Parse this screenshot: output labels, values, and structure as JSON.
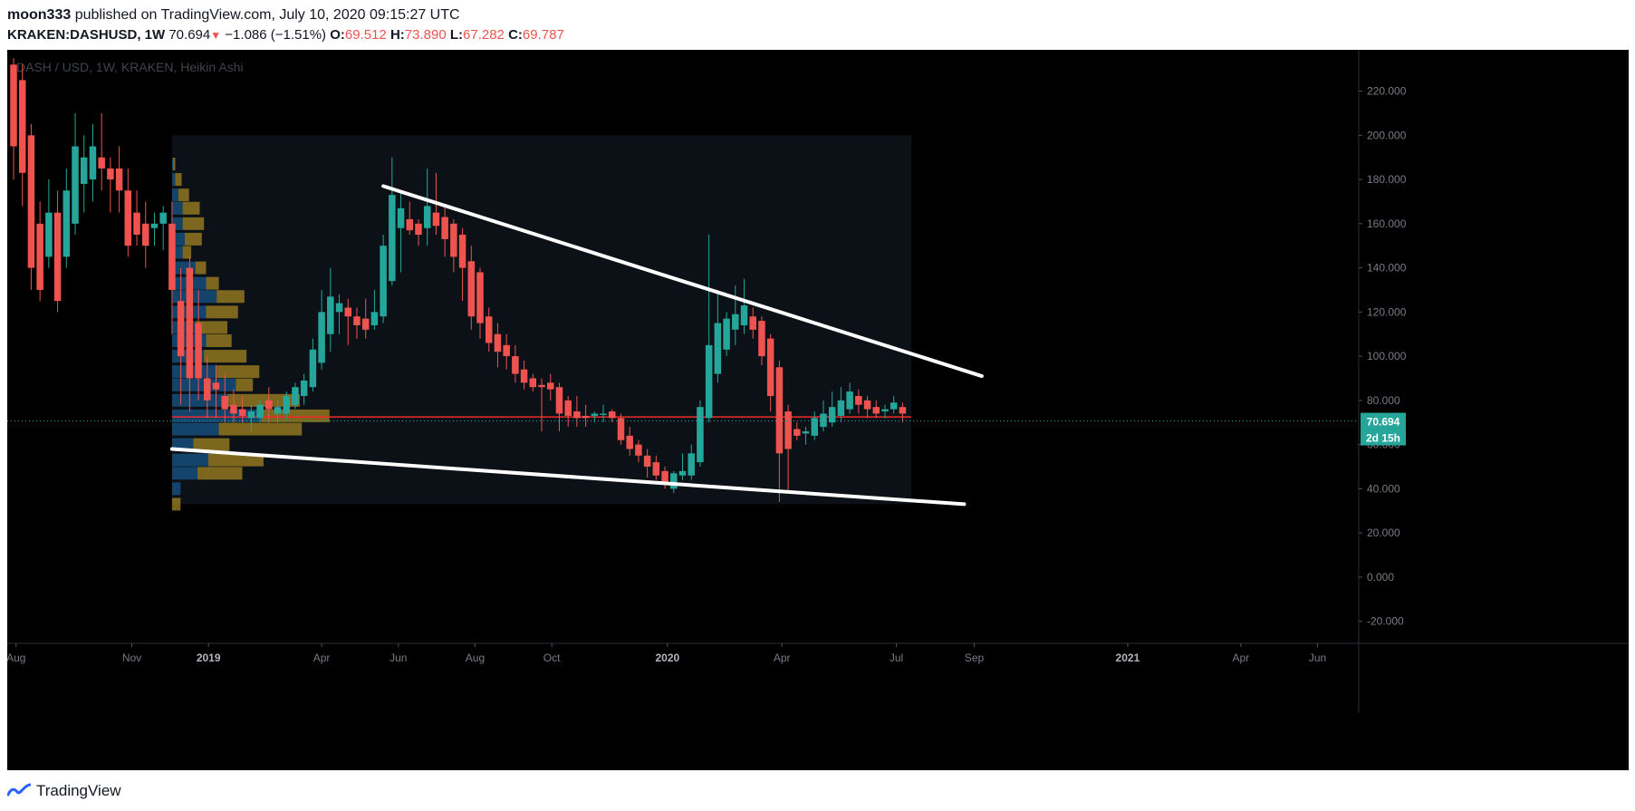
{
  "header": {
    "author": "moon333",
    "published_text": "published on TradingView.com, July 10, 2020 09:15:27 UTC",
    "symbol": "KRAKEN:DASHUSD, 1W",
    "last": "70.694",
    "change": "−1.086 (−1.51%)",
    "o_label": "O:",
    "o_value": "69.512",
    "h_label": "H:",
    "h_value": "73.890",
    "l_label": "L:",
    "l_value": "67.282",
    "c_label": "C:",
    "c_value": "69.787"
  },
  "colors": {
    "up": "#26a69a",
    "down": "#ef5350",
    "background": "#000000",
    "trendline": "#ffffff",
    "profile_up": "#1e6fb5",
    "profile_down": "#c9a227",
    "poc_line": "#ef2b2b",
    "price_label_bg": "#26a69a"
  },
  "footer": {
    "brand": "TradingView"
  },
  "chart_data": {
    "type": "candlestick",
    "watermark": "DASH / USD, 1W, KRAKEN, Heikin Ashi",
    "y_axis": {
      "range": [
        -30,
        235
      ],
      "ticks": [
        "220.000",
        "200.000",
        "180.000",
        "160.000",
        "140.000",
        "120.000",
        "100.000",
        "80.000",
        "60.000",
        "40.000",
        "20.000",
        "0.000",
        "-20.000"
      ],
      "tick_values": [
        220,
        200,
        180,
        160,
        140,
        120,
        100,
        80,
        60,
        40,
        20,
        0,
        -20
      ]
    },
    "x_axis": {
      "range": [
        "2018-07-30",
        "2021-06-28"
      ],
      "labels": [
        {
          "text": "Aug",
          "date": "2018-08-01",
          "bold": false
        },
        {
          "text": "Nov",
          "date": "2018-11-01",
          "bold": false
        },
        {
          "text": "2019",
          "date": "2019-01-01",
          "bold": true
        },
        {
          "text": "Apr",
          "date": "2019-04-01",
          "bold": false
        },
        {
          "text": "Jun",
          "date": "2019-06-01",
          "bold": false
        },
        {
          "text": "Aug",
          "date": "2019-08-01",
          "bold": false
        },
        {
          "text": "Oct",
          "date": "2019-10-01",
          "bold": false
        },
        {
          "text": "2020",
          "date": "2020-01-01",
          "bold": true
        },
        {
          "text": "Apr",
          "date": "2020-04-01",
          "bold": false
        },
        {
          "text": "Jul",
          "date": "2020-07-01",
          "bold": false
        },
        {
          "text": "Sep",
          "date": "2020-09-01",
          "bold": false
        },
        {
          "text": "2021",
          "date": "2021-01-01",
          "bold": true
        },
        {
          "text": "Apr",
          "date": "2021-04-01",
          "bold": false
        },
        {
          "text": "Jun",
          "date": "2021-06-01",
          "bold": false
        }
      ]
    },
    "current_price": {
      "value": 70.694,
      "label": "70.694",
      "countdown": "2d 15h"
    },
    "poc_price": 72.5,
    "candles": [
      {
        "d": "2018-07-30",
        "o": 232,
        "h": 235,
        "l": 180,
        "c": 195
      },
      {
        "d": "2018-08-06",
        "o": 225,
        "h": 232,
        "l": 168,
        "c": 183
      },
      {
        "d": "2018-08-13",
        "o": 200,
        "h": 205,
        "l": 130,
        "c": 140
      },
      {
        "d": "2018-08-20",
        "o": 160,
        "h": 170,
        "l": 125,
        "c": 130
      },
      {
        "d": "2018-08-27",
        "o": 145,
        "h": 180,
        "l": 140,
        "c": 165
      },
      {
        "d": "2018-09-03",
        "o": 165,
        "h": 175,
        "l": 120,
        "c": 125
      },
      {
        "d": "2018-09-10",
        "o": 145,
        "h": 185,
        "l": 140,
        "c": 175
      },
      {
        "d": "2018-09-17",
        "o": 160,
        "h": 210,
        "l": 155,
        "c": 195
      },
      {
        "d": "2018-09-24",
        "o": 178,
        "h": 200,
        "l": 165,
        "c": 190
      },
      {
        "d": "2018-10-01",
        "o": 180,
        "h": 205,
        "l": 170,
        "c": 195
      },
      {
        "d": "2018-10-08",
        "o": 190,
        "h": 210,
        "l": 175,
        "c": 185
      },
      {
        "d": "2018-10-15",
        "o": 185,
        "h": 190,
        "l": 165,
        "c": 180
      },
      {
        "d": "2018-10-22",
        "o": 185,
        "h": 195,
        "l": 165,
        "c": 175
      },
      {
        "d": "2018-10-29",
        "o": 175,
        "h": 185,
        "l": 145,
        "c": 150
      },
      {
        "d": "2018-11-05",
        "o": 165,
        "h": 175,
        "l": 150,
        "c": 155
      },
      {
        "d": "2018-11-12",
        "o": 160,
        "h": 170,
        "l": 140,
        "c": 150
      },
      {
        "d": "2018-11-19",
        "o": 158,
        "h": 165,
        "l": 150,
        "c": 160
      },
      {
        "d": "2018-11-26",
        "o": 160,
        "h": 168,
        "l": 148,
        "c": 165
      },
      {
        "d": "2018-12-03",
        "o": 160,
        "h": 170,
        "l": 110,
        "c": 130
      },
      {
        "d": "2018-12-10",
        "o": 125,
        "h": 140,
        "l": 78,
        "c": 100
      },
      {
        "d": "2018-12-17",
        "o": 140,
        "h": 145,
        "l": 75,
        "c": 90
      },
      {
        "d": "2018-12-24",
        "o": 115,
        "h": 130,
        "l": 80,
        "c": 90
      },
      {
        "d": "2018-12-31",
        "o": 90,
        "h": 100,
        "l": 72,
        "c": 80
      },
      {
        "d": "2019-01-07",
        "o": 88,
        "h": 96,
        "l": 72,
        "c": 85
      },
      {
        "d": "2019-01-14",
        "o": 82,
        "h": 92,
        "l": 70,
        "c": 76
      },
      {
        "d": "2019-01-21",
        "o": 78,
        "h": 85,
        "l": 70,
        "c": 74
      },
      {
        "d": "2019-01-28",
        "o": 76,
        "h": 82,
        "l": 70,
        "c": 73
      },
      {
        "d": "2019-02-04",
        "o": 72,
        "h": 78,
        "l": 66,
        "c": 75
      },
      {
        "d": "2019-02-11",
        "o": 72,
        "h": 80,
        "l": 70,
        "c": 78
      },
      {
        "d": "2019-02-18",
        "o": 80,
        "h": 86,
        "l": 70,
        "c": 76
      },
      {
        "d": "2019-02-25",
        "o": 74,
        "h": 80,
        "l": 70,
        "c": 77
      },
      {
        "d": "2019-03-04",
        "o": 74,
        "h": 84,
        "l": 72,
        "c": 82
      },
      {
        "d": "2019-03-11",
        "o": 78,
        "h": 88,
        "l": 76,
        "c": 86
      },
      {
        "d": "2019-03-18",
        "o": 82,
        "h": 92,
        "l": 78,
        "c": 89
      },
      {
        "d": "2019-03-25",
        "o": 86,
        "h": 108,
        "l": 84,
        "c": 103
      },
      {
        "d": "2019-04-01",
        "o": 97,
        "h": 130,
        "l": 94,
        "c": 120
      },
      {
        "d": "2019-04-08",
        "o": 110,
        "h": 140,
        "l": 102,
        "c": 127
      },
      {
        "d": "2019-04-15",
        "o": 120,
        "h": 128,
        "l": 110,
        "c": 124
      },
      {
        "d": "2019-04-22",
        "o": 122,
        "h": 126,
        "l": 105,
        "c": 118
      },
      {
        "d": "2019-04-29",
        "o": 118,
        "h": 122,
        "l": 108,
        "c": 114
      },
      {
        "d": "2019-05-06",
        "o": 117,
        "h": 126,
        "l": 108,
        "c": 112
      },
      {
        "d": "2019-05-13",
        "o": 114,
        "h": 130,
        "l": 112,
        "c": 120
      },
      {
        "d": "2019-05-20",
        "o": 118,
        "h": 155,
        "l": 115,
        "c": 150
      },
      {
        "d": "2019-05-27",
        "o": 134,
        "h": 190,
        "l": 132,
        "c": 173
      },
      {
        "d": "2019-06-03",
        "o": 158,
        "h": 175,
        "l": 138,
        "c": 167
      },
      {
        "d": "2019-06-10",
        "o": 162,
        "h": 170,
        "l": 155,
        "c": 157
      },
      {
        "d": "2019-06-17",
        "o": 160,
        "h": 162,
        "l": 150,
        "c": 155
      },
      {
        "d": "2019-06-24",
        "o": 158,
        "h": 185,
        "l": 150,
        "c": 168
      },
      {
        "d": "2019-07-01",
        "o": 165,
        "h": 183,
        "l": 155,
        "c": 159
      },
      {
        "d": "2019-07-08",
        "o": 163,
        "h": 168,
        "l": 145,
        "c": 153
      },
      {
        "d": "2019-07-15",
        "o": 160,
        "h": 162,
        "l": 138,
        "c": 145
      },
      {
        "d": "2019-07-22",
        "o": 155,
        "h": 158,
        "l": 125,
        "c": 140
      },
      {
        "d": "2019-07-29",
        "o": 143,
        "h": 150,
        "l": 112,
        "c": 118
      },
      {
        "d": "2019-08-05",
        "o": 138,
        "h": 140,
        "l": 108,
        "c": 115
      },
      {
        "d": "2019-08-12",
        "o": 118,
        "h": 122,
        "l": 102,
        "c": 106
      },
      {
        "d": "2019-08-19",
        "o": 110,
        "h": 115,
        "l": 95,
        "c": 102
      },
      {
        "d": "2019-08-26",
        "o": 105,
        "h": 110,
        "l": 94,
        "c": 100
      },
      {
        "d": "2019-09-02",
        "o": 100,
        "h": 105,
        "l": 88,
        "c": 92
      },
      {
        "d": "2019-09-09",
        "o": 94,
        "h": 98,
        "l": 85,
        "c": 88
      },
      {
        "d": "2019-09-16",
        "o": 90,
        "h": 92,
        "l": 84,
        "c": 86
      },
      {
        "d": "2019-09-23",
        "o": 87,
        "h": 90,
        "l": 66,
        "c": 86
      },
      {
        "d": "2019-09-30",
        "o": 88,
        "h": 92,
        "l": 80,
        "c": 85
      },
      {
        "d": "2019-10-07",
        "o": 86,
        "h": 88,
        "l": 66,
        "c": 74
      },
      {
        "d": "2019-10-14",
        "o": 80,
        "h": 82,
        "l": 68,
        "c": 73
      },
      {
        "d": "2019-10-21",
        "o": 75,
        "h": 82,
        "l": 68,
        "c": 72
      },
      {
        "d": "2019-10-28",
        "o": 73,
        "h": 78,
        "l": 68,
        "c": 72
      },
      {
        "d": "2019-11-04",
        "o": 73,
        "h": 75,
        "l": 70,
        "c": 74
      },
      {
        "d": "2019-11-11",
        "o": 74,
        "h": 78,
        "l": 70,
        "c": 74
      },
      {
        "d": "2019-11-18",
        "o": 75,
        "h": 76,
        "l": 70,
        "c": 72
      },
      {
        "d": "2019-11-25",
        "o": 72,
        "h": 74,
        "l": 60,
        "c": 62
      },
      {
        "d": "2019-12-02",
        "o": 64,
        "h": 68,
        "l": 55,
        "c": 58
      },
      {
        "d": "2019-12-09",
        "o": 60,
        "h": 62,
        "l": 52,
        "c": 55
      },
      {
        "d": "2019-12-16",
        "o": 55,
        "h": 58,
        "l": 45,
        "c": 50
      },
      {
        "d": "2019-12-23",
        "o": 52,
        "h": 55,
        "l": 44,
        "c": 46
      },
      {
        "d": "2019-12-30",
        "o": 48,
        "h": 50,
        "l": 40,
        "c": 42
      },
      {
        "d": "2020-01-06",
        "o": 40,
        "h": 48,
        "l": 38,
        "c": 47
      },
      {
        "d": "2020-01-13",
        "o": 46,
        "h": 56,
        "l": 44,
        "c": 48
      },
      {
        "d": "2020-01-20",
        "o": 46,
        "h": 60,
        "l": 44,
        "c": 56
      },
      {
        "d": "2020-01-27",
        "o": 52,
        "h": 80,
        "l": 50,
        "c": 77
      },
      {
        "d": "2020-02-03",
        "o": 72,
        "h": 155,
        "l": 70,
        "c": 105
      },
      {
        "d": "2020-02-10",
        "o": 92,
        "h": 130,
        "l": 88,
        "c": 115
      },
      {
        "d": "2020-02-17",
        "o": 103,
        "h": 120,
        "l": 100,
        "c": 117
      },
      {
        "d": "2020-02-24",
        "o": 112,
        "h": 132,
        "l": 105,
        "c": 119
      },
      {
        "d": "2020-03-02",
        "o": 114,
        "h": 135,
        "l": 110,
        "c": 123
      },
      {
        "d": "2020-03-09",
        "o": 118,
        "h": 122,
        "l": 108,
        "c": 112
      },
      {
        "d": "2020-03-16",
        "o": 116,
        "h": 118,
        "l": 96,
        "c": 100
      },
      {
        "d": "2020-03-23",
        "o": 108,
        "h": 110,
        "l": 75,
        "c": 82
      },
      {
        "d": "2020-03-30",
        "o": 95,
        "h": 98,
        "l": 34,
        "c": 56
      },
      {
        "d": "2020-04-06",
        "o": 75,
        "h": 78,
        "l": 38,
        "c": 58
      },
      {
        "d": "2020-04-13",
        "o": 67,
        "h": 70,
        "l": 62,
        "c": 64
      },
      {
        "d": "2020-04-20",
        "o": 65,
        "h": 68,
        "l": 60,
        "c": 66
      },
      {
        "d": "2020-04-27",
        "o": 64,
        "h": 75,
        "l": 62,
        "c": 72
      },
      {
        "d": "2020-05-04",
        "o": 68,
        "h": 80,
        "l": 66,
        "c": 74
      },
      {
        "d": "2020-05-11",
        "o": 70,
        "h": 84,
        "l": 68,
        "c": 77
      },
      {
        "d": "2020-05-18",
        "o": 73,
        "h": 86,
        "l": 70,
        "c": 80
      },
      {
        "d": "2020-05-25",
        "o": 76,
        "h": 88,
        "l": 74,
        "c": 84
      },
      {
        "d": "2020-06-01",
        "o": 82,
        "h": 85,
        "l": 74,
        "c": 78
      },
      {
        "d": "2020-06-08",
        "o": 80,
        "h": 82,
        "l": 72,
        "c": 76
      },
      {
        "d": "2020-06-15",
        "o": 77,
        "h": 80,
        "l": 72,
        "c": 74
      },
      {
        "d": "2020-06-22",
        "o": 75,
        "h": 78,
        "l": 72,
        "c": 76
      },
      {
        "d": "2020-06-29",
        "o": 76,
        "h": 82,
        "l": 74,
        "c": 79
      },
      {
        "d": "2020-07-06",
        "o": 77,
        "h": 79,
        "l": 70,
        "c": 74
      }
    ],
    "volume_profile": [
      {
        "price": 187,
        "up": 0.5,
        "down": 1.0
      },
      {
        "price": 180,
        "up": 1.5,
        "down": 3.0
      },
      {
        "price": 173,
        "up": 3.0,
        "down": 5.0
      },
      {
        "price": 167,
        "up": 5.0,
        "down": 8.0
      },
      {
        "price": 160,
        "up": 5.0,
        "down": 10.0
      },
      {
        "price": 153,
        "up": 6.0,
        "down": 8.0
      },
      {
        "price": 147,
        "up": 5.0,
        "down": 4.0
      },
      {
        "price": 140,
        "up": 11.0,
        "down": 5.0
      },
      {
        "price": 133,
        "up": 16.0,
        "down": 6.0
      },
      {
        "price": 127,
        "up": 21.0,
        "down": 13.0
      },
      {
        "price": 120,
        "up": 16.0,
        "down": 15.0
      },
      {
        "price": 113,
        "up": 11.0,
        "down": 15.0
      },
      {
        "price": 107,
        "up": 16.0,
        "down": 12.0
      },
      {
        "price": 100,
        "up": 15.0,
        "down": 20.0
      },
      {
        "price": 93,
        "up": 21.0,
        "down": 20.0
      },
      {
        "price": 87,
        "up": 30.0,
        "down": 8.0
      },
      {
        "price": 80,
        "up": 26.0,
        "down": 34.0
      },
      {
        "price": 73,
        "up": 42.0,
        "down": 32.0
      },
      {
        "price": 67,
        "up": 22.0,
        "down": 39.0
      },
      {
        "price": 60,
        "up": 10.0,
        "down": 17.0
      },
      {
        "price": 53,
        "up": 17.0,
        "down": 26.0
      },
      {
        "price": 47,
        "up": 12.0,
        "down": 21.0
      },
      {
        "price": 40,
        "up": 4.0,
        "down": 0.0
      },
      {
        "price": 33,
        "up": 0.0,
        "down": 4.0
      }
    ],
    "volume_profile_range": {
      "from": "2018-12-03",
      "to": "2020-07-13",
      "price_low": 33,
      "price_high": 200
    },
    "trendlines": [
      {
        "from": {
          "d": "2019-05-20",
          "p": 177
        },
        "to": {
          "d": "2020-09-07",
          "p": 91
        }
      },
      {
        "from": {
          "d": "2018-12-03",
          "p": 58
        },
        "to": {
          "d": "2020-08-24",
          "p": 33
        }
      }
    ]
  }
}
